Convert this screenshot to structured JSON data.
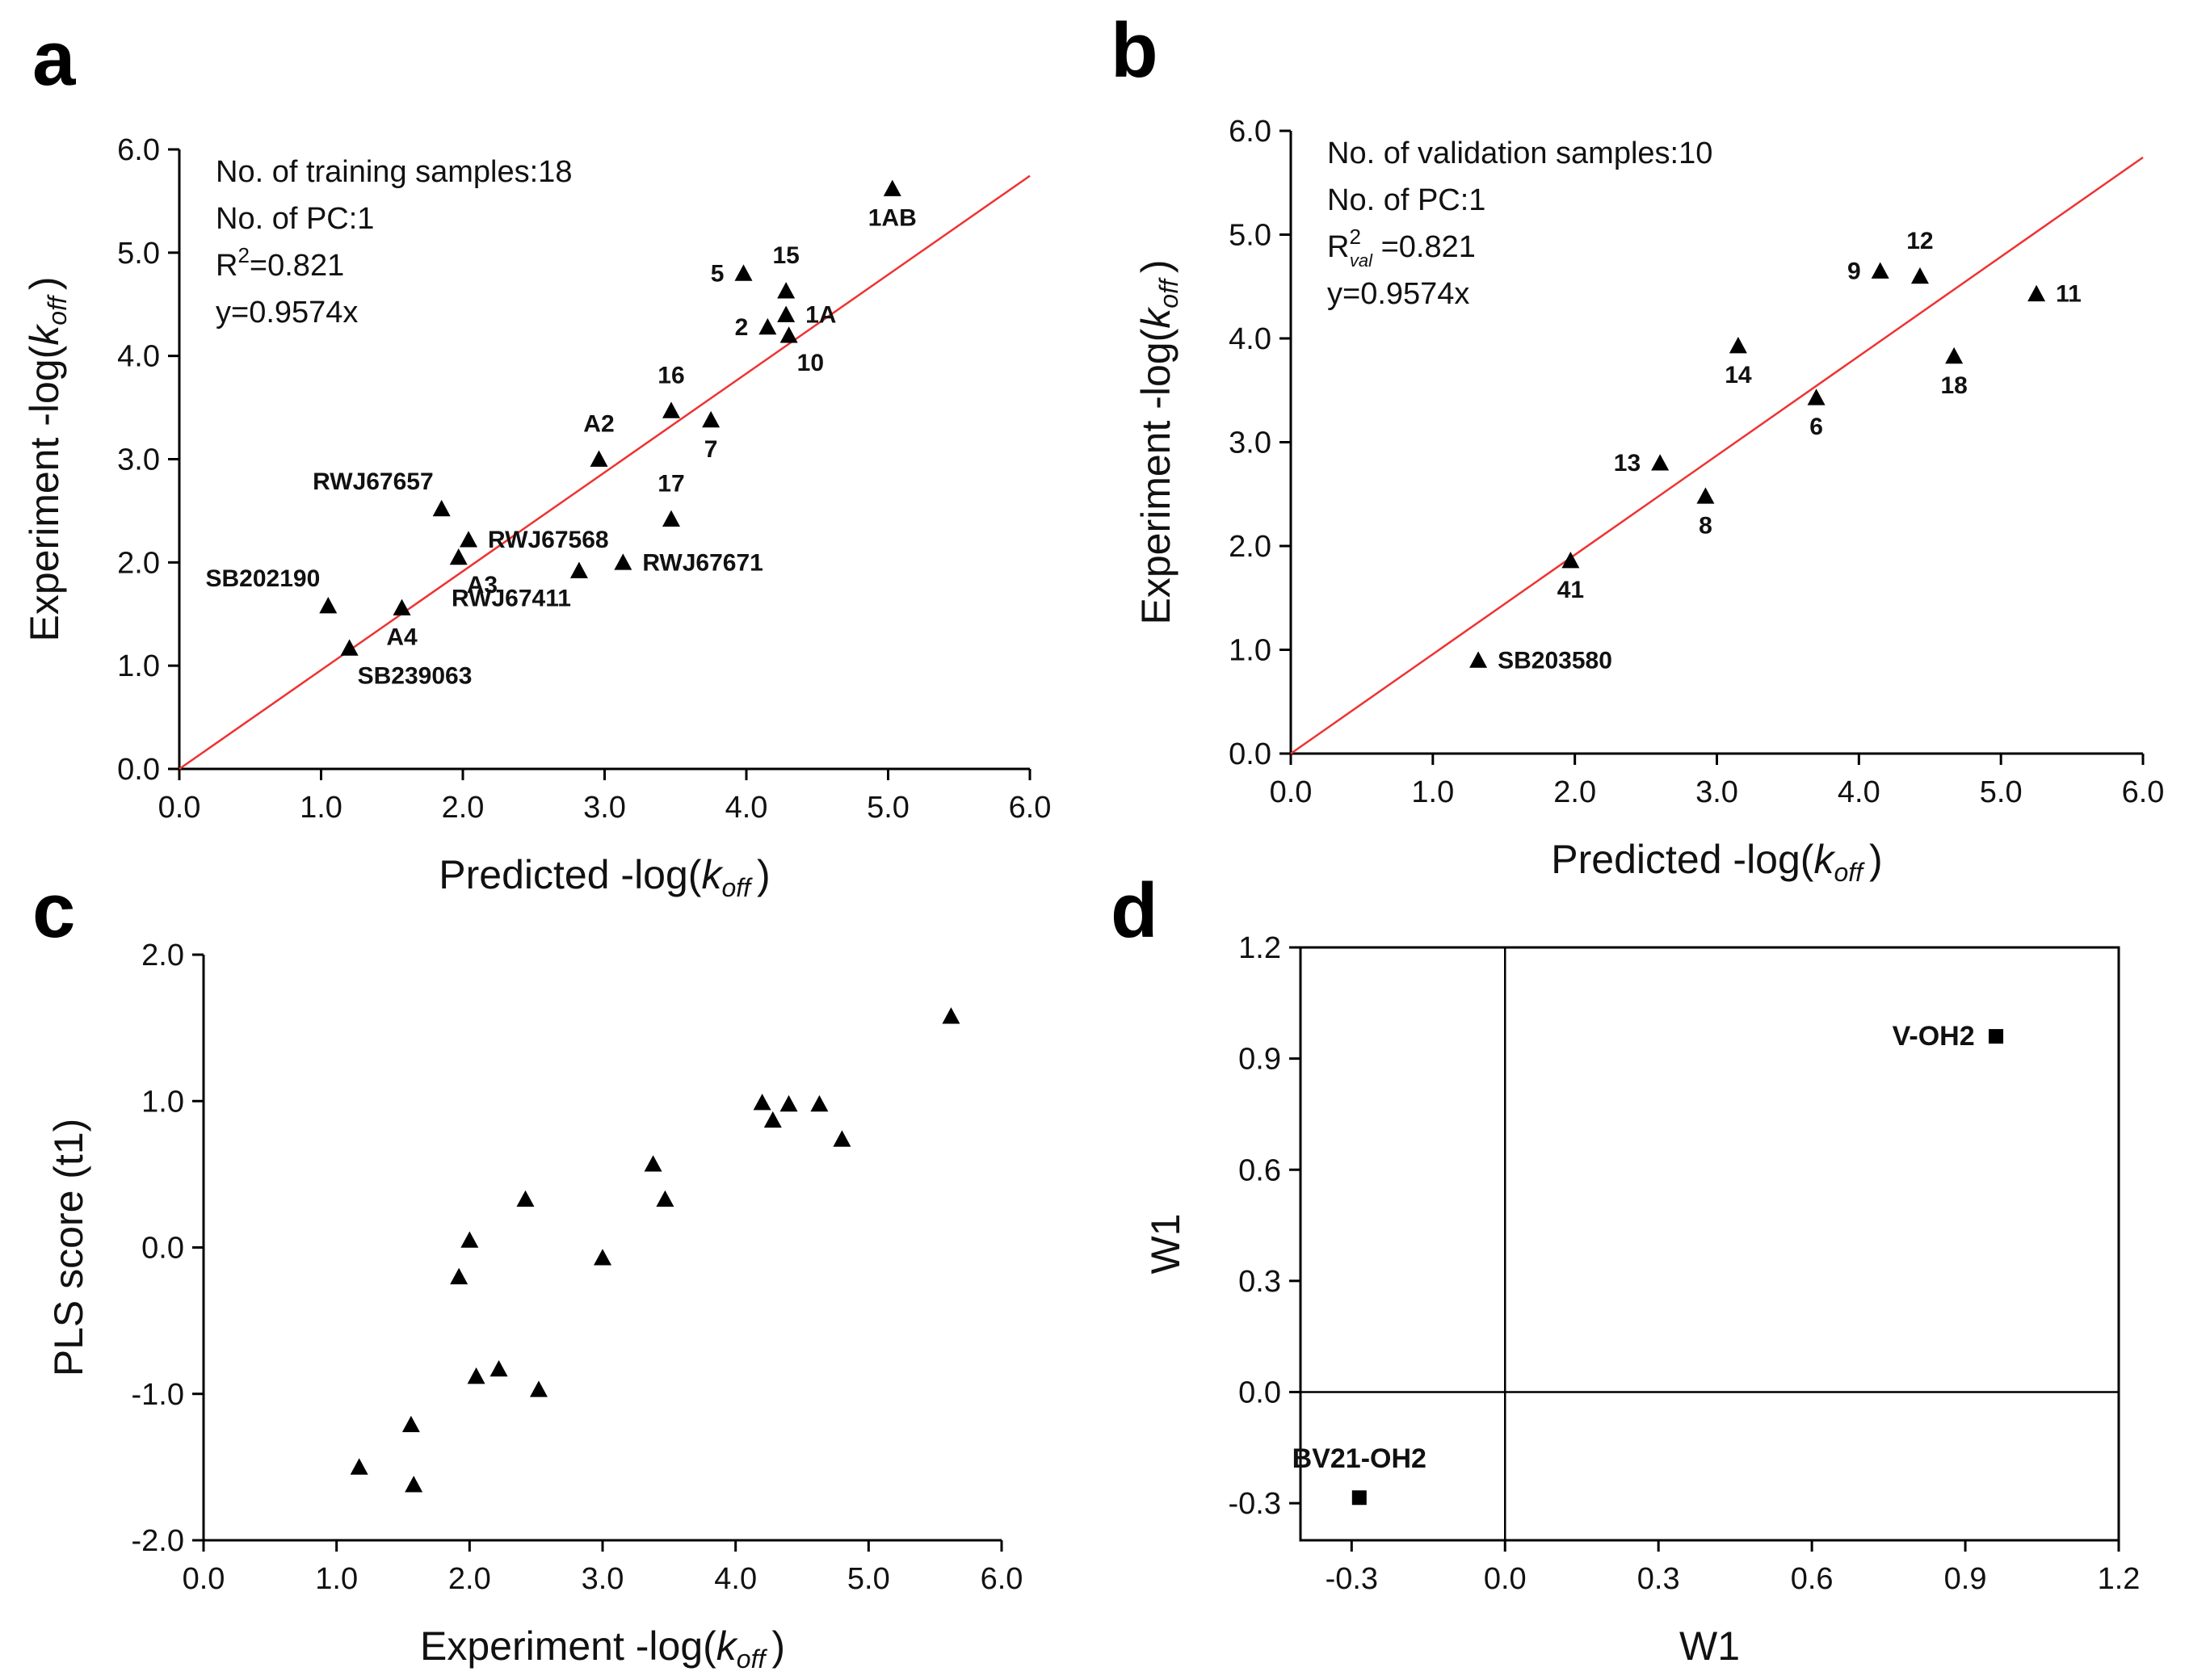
{
  "chart_data": [
    {
      "id": "a",
      "letter": "a",
      "type": "scatter",
      "title": "",
      "xlabel_prefix": "Predicted -log(",
      "ylabel_prefix": "Experiment -log(",
      "label_var": "k",
      "label_sub": "off",
      "label_suffix": ")",
      "xlim": [
        0,
        6
      ],
      "ylim": [
        0,
        6
      ],
      "xticks": [
        0,
        1,
        2,
        3,
        4,
        5,
        6
      ],
      "yticks": [
        0,
        1,
        2,
        3,
        4,
        5,
        6
      ],
      "tick_labels_x": [
        "0.0",
        "1.0",
        "2.0",
        "3.0",
        "4.0",
        "5.0",
        "6.0"
      ],
      "tick_labels_y": [
        "0.0",
        "1.0",
        "2.0",
        "3.0",
        "4.0",
        "5.0",
        "6.0"
      ],
      "marker": "triangle",
      "fit_line": {
        "slope": 0.9574,
        "color": "#ee3333"
      },
      "info": [
        {
          "text": "No. of training samples:18"
        },
        {
          "text": "No. of PC:1"
        },
        {
          "text": "R",
          "sup": "2",
          "after": "=0.821"
        },
        {
          "text": "y=0.9574x"
        }
      ],
      "points": [
        {
          "x": 5.03,
          "y": 5.62,
          "label": "1AB",
          "pos": "below"
        },
        {
          "x": 3.98,
          "y": 4.8,
          "label": "5",
          "pos": "left"
        },
        {
          "x": 4.28,
          "y": 4.63,
          "label": "15",
          "pos": "above"
        },
        {
          "x": 4.28,
          "y": 4.4,
          "label": "1A",
          "pos": "right"
        },
        {
          "x": 4.15,
          "y": 4.28,
          "label": "2",
          "pos": "left"
        },
        {
          "x": 4.3,
          "y": 4.2,
          "label": "10",
          "pos": "belowright"
        },
        {
          "x": 3.47,
          "y": 3.47,
          "label": "16",
          "pos": "above"
        },
        {
          "x": 3.75,
          "y": 3.38,
          "label": "7",
          "pos": "below"
        },
        {
          "x": 2.96,
          "y": 3.0,
          "label": "A2",
          "pos": "above"
        },
        {
          "x": 1.85,
          "y": 2.52,
          "label": "RWJ67657",
          "pos": "aboveleft"
        },
        {
          "x": 3.47,
          "y": 2.42,
          "label": "17",
          "pos": "above"
        },
        {
          "x": 2.04,
          "y": 2.22,
          "label": "RWJ67568",
          "pos": "right"
        },
        {
          "x": 1.97,
          "y": 2.05,
          "label": "A3",
          "pos": "belowright"
        },
        {
          "x": 3.13,
          "y": 2.0,
          "label": "RWJ67671",
          "pos": "right"
        },
        {
          "x": 2.82,
          "y": 1.92,
          "label": "RWJ67411",
          "pos": "belowleft"
        },
        {
          "x": 1.05,
          "y": 1.58,
          "label": "SB202190",
          "pos": "aboveleft"
        },
        {
          "x": 1.57,
          "y": 1.56,
          "label": "A4",
          "pos": "below"
        },
        {
          "x": 1.2,
          "y": 1.17,
          "label": "SB239063",
          "pos": "belowright"
        }
      ]
    },
    {
      "id": "b",
      "letter": "b",
      "type": "scatter",
      "title": "",
      "xlabel_prefix": "Predicted -log(",
      "ylabel_prefix": "Experiment -log(",
      "label_var": "k",
      "label_sub": "off",
      "label_suffix": ")",
      "xlim": [
        0,
        6
      ],
      "ylim": [
        0,
        6
      ],
      "xticks": [
        0,
        1,
        2,
        3,
        4,
        5,
        6
      ],
      "yticks": [
        0,
        1,
        2,
        3,
        4,
        5,
        6
      ],
      "tick_labels_x": [
        "0.0",
        "1.0",
        "2.0",
        "3.0",
        "4.0",
        "5.0",
        "6.0"
      ],
      "tick_labels_y": [
        "0.0",
        "1.0",
        "2.0",
        "3.0",
        "4.0",
        "5.0",
        "6.0"
      ],
      "marker": "triangle",
      "fit_line": {
        "slope": 0.9574,
        "color": "#ee3333"
      },
      "info": [
        {
          "text": "No. of validation samples:10"
        },
        {
          "text": "No. of PC:1"
        },
        {
          "text": "R",
          "sup": "2",
          "sub": "val",
          "after": " =0.821"
        },
        {
          "text": "y=0.9574x"
        }
      ],
      "points": [
        {
          "x": 4.15,
          "y": 4.65,
          "label": "9",
          "pos": "left"
        },
        {
          "x": 4.43,
          "y": 4.6,
          "label": "12",
          "pos": "above"
        },
        {
          "x": 5.25,
          "y": 4.43,
          "label": "11",
          "pos": "right"
        },
        {
          "x": 3.15,
          "y": 3.93,
          "label": "14",
          "pos": "below"
        },
        {
          "x": 4.67,
          "y": 3.83,
          "label": "18",
          "pos": "below"
        },
        {
          "x": 3.7,
          "y": 3.43,
          "label": "6",
          "pos": "below"
        },
        {
          "x": 2.6,
          "y": 2.8,
          "label": "13",
          "pos": "left"
        },
        {
          "x": 2.92,
          "y": 2.48,
          "label": "8",
          "pos": "below"
        },
        {
          "x": 1.97,
          "y": 1.86,
          "label": "41",
          "pos": "below"
        },
        {
          "x": 1.32,
          "y": 0.9,
          "label": "SB203580",
          "pos": "right"
        }
      ]
    },
    {
      "id": "c",
      "letter": "c",
      "type": "scatter",
      "title": "",
      "xlabel_prefix": "Experiment -log(",
      "label_var": "k",
      "label_sub": "off",
      "label_suffix": ")",
      "ylabel": "PLS score (t1)",
      "xlim": [
        0,
        6
      ],
      "ylim": [
        -2,
        2
      ],
      "xticks": [
        0,
        1,
        2,
        3,
        4,
        5,
        6
      ],
      "yticks": [
        -2,
        -1,
        0,
        1,
        2
      ],
      "tick_labels_x": [
        "0.0",
        "1.0",
        "2.0",
        "3.0",
        "4.0",
        "5.0",
        "6.0"
      ],
      "tick_labels_y": [
        "-2.0",
        "-1.0",
        "0.0",
        "1.0",
        "2.0"
      ],
      "marker": "triangle",
      "points": [
        {
          "x": 5.62,
          "y": 1.58
        },
        {
          "x": 4.2,
          "y": 0.99
        },
        {
          "x": 4.28,
          "y": 0.87
        },
        {
          "x": 4.4,
          "y": 0.98
        },
        {
          "x": 4.63,
          "y": 0.98
        },
        {
          "x": 4.8,
          "y": 0.74
        },
        {
          "x": 3.38,
          "y": 0.57
        },
        {
          "x": 3.47,
          "y": 0.33
        },
        {
          "x": 2.42,
          "y": 0.33
        },
        {
          "x": 3.0,
          "y": -0.07
        },
        {
          "x": 2.0,
          "y": 0.05
        },
        {
          "x": 1.92,
          "y": -0.2
        },
        {
          "x": 2.05,
          "y": -0.88
        },
        {
          "x": 2.22,
          "y": -0.83
        },
        {
          "x": 2.52,
          "y": -0.97
        },
        {
          "x": 1.56,
          "y": -1.21
        },
        {
          "x": 1.17,
          "y": -1.5
        },
        {
          "x": 1.58,
          "y": -1.62
        }
      ]
    },
    {
      "id": "d",
      "letter": "d",
      "type": "scatter",
      "title": "",
      "xlabel": "W1",
      "ylabel": "W1",
      "xlim": [
        -0.4,
        1.2
      ],
      "ylim": [
        -0.4,
        1.2
      ],
      "xticks": [
        -0.3,
        0,
        0.3,
        0.6,
        0.9,
        1.2
      ],
      "yticks": [
        -0.3,
        0,
        0.3,
        0.6,
        0.9,
        1.2
      ],
      "tick_labels_x": [
        "-0.3",
        "0.0",
        "0.3",
        "0.6",
        "0.9",
        "1.2"
      ],
      "tick_labels_y": [
        "-0.3",
        "0.0",
        "0.3",
        "0.6",
        "0.9",
        "1.2"
      ],
      "marker": "square",
      "boxed": true,
      "zero_lines": true,
      "points": [
        {
          "x": 0.96,
          "y": 0.96,
          "label": "V-OH2",
          "pos": "left"
        },
        {
          "x": -0.285,
          "y": -0.285,
          "label": "BV21-OH2",
          "pos": "above"
        }
      ]
    }
  ]
}
